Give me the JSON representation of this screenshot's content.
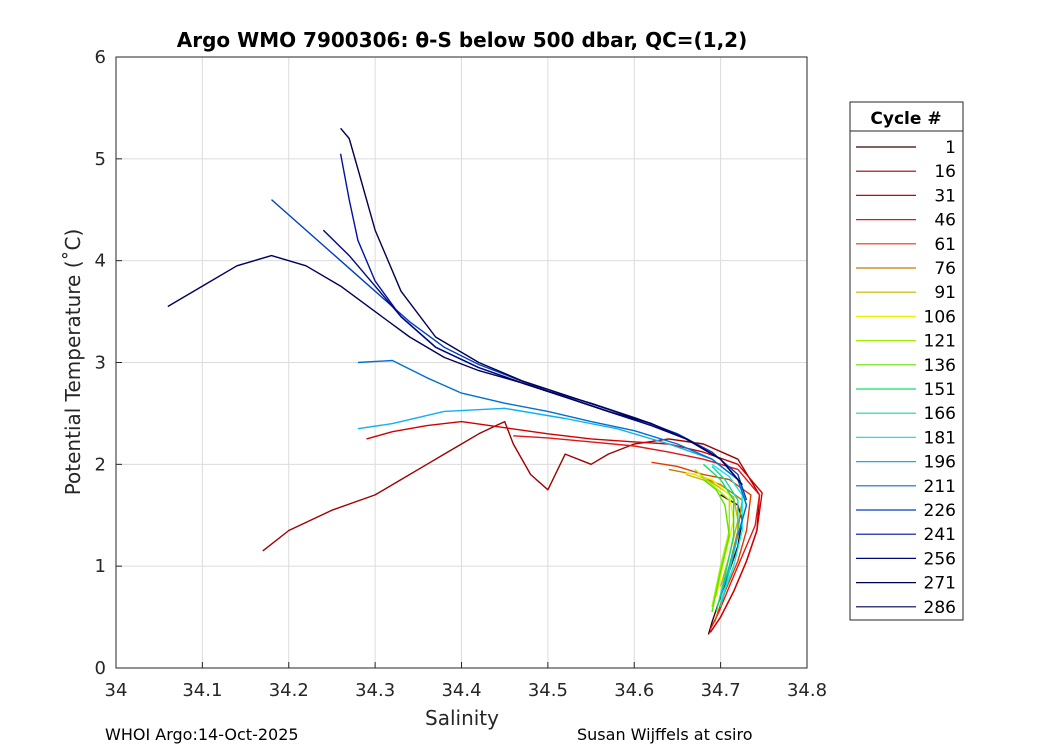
{
  "chart_data": {
    "type": "line",
    "title": "Argo WMO 7900306: θ-S below 500 dbar,  QC=(1,2)",
    "xlabel": "Salinity",
    "ylabel": "Potential Temperature (˚C)",
    "xlim": [
      34,
      34.8
    ],
    "ylim": [
      0,
      6
    ],
    "xticks": [
      34,
      34.1,
      34.2,
      34.3,
      34.4,
      34.5,
      34.6,
      34.7,
      34.8
    ],
    "yticks": [
      0,
      1,
      2,
      3,
      4,
      5,
      6
    ],
    "grid": true,
    "legend": {
      "title": "Cycle #",
      "position": "outside-right",
      "entries": [
        {
          "label": "1",
          "color": "#3b0000"
        },
        {
          "label": "16",
          "color": "#a00000"
        },
        {
          "label": "31",
          "color": "#d40000"
        },
        {
          "label": "46",
          "color": "#e31616"
        },
        {
          "label": "61",
          "color": "#e33a00"
        },
        {
          "label": "76",
          "color": "#c87a00"
        },
        {
          "label": "91",
          "color": "#c8b400"
        },
        {
          "label": "106",
          "color": "#f0f000"
        },
        {
          "label": "121",
          "color": "#a0f000"
        },
        {
          "label": "136",
          "color": "#60e000"
        },
        {
          "label": "151",
          "color": "#10e060"
        },
        {
          "label": "166",
          "color": "#10d8a8"
        },
        {
          "label": "181",
          "color": "#10e8e8"
        },
        {
          "label": "196",
          "color": "#10b0f0"
        },
        {
          "label": "211",
          "color": "#0070d0"
        },
        {
          "label": "226",
          "color": "#0040c0"
        },
        {
          "label": "241",
          "color": "#0010a8"
        },
        {
          "label": "256",
          "color": "#000880"
        },
        {
          "label": "271",
          "color": "#000050"
        },
        {
          "label": "286",
          "color": "#00005c"
        }
      ]
    },
    "series": [
      {
        "name": "1",
        "color": "#3b0000",
        "x": [
          34.686,
          34.69,
          34.7,
          34.71,
          34.72,
          34.725,
          34.72,
          34.7
        ],
        "y": [
          0.33,
          0.45,
          0.7,
          0.95,
          1.2,
          1.45,
          1.6,
          1.7
        ]
      },
      {
        "name": "16",
        "color": "#a00000",
        "x": [
          34.17,
          34.2,
          34.25,
          34.3,
          34.33,
          34.36,
          34.38,
          34.4,
          34.42,
          34.44,
          34.45,
          34.46,
          34.48,
          34.5,
          34.52,
          34.55,
          34.57,
          34.6,
          34.64,
          34.68,
          34.72,
          34.745,
          34.742,
          34.73,
          34.715,
          34.7,
          34.688
        ],
        "y": [
          1.15,
          1.35,
          1.55,
          1.7,
          1.85,
          2.0,
          2.1,
          2.2,
          2.3,
          2.38,
          2.42,
          2.2,
          1.9,
          1.75,
          2.1,
          2.0,
          2.1,
          2.2,
          2.25,
          2.2,
          2.05,
          1.7,
          1.35,
          1.05,
          0.75,
          0.5,
          0.35
        ]
      },
      {
        "name": "31",
        "color": "#d40000",
        "x": [
          34.29,
          34.32,
          34.36,
          34.4,
          34.45,
          34.5,
          34.55,
          34.6,
          34.64,
          34.68,
          34.72,
          34.748,
          34.742,
          34.73,
          34.715,
          34.7,
          34.688
        ],
        "y": [
          2.25,
          2.32,
          2.38,
          2.42,
          2.36,
          2.3,
          2.25,
          2.22,
          2.2,
          2.12,
          2.0,
          1.72,
          1.35,
          1.05,
          0.75,
          0.5,
          0.35
        ]
      },
      {
        "name": "46",
        "color": "#e31616",
        "x": [
          34.46,
          34.5,
          34.55,
          34.6,
          34.64,
          34.68,
          34.72,
          34.745,
          34.74,
          34.725,
          34.71,
          34.698,
          34.688
        ],
        "y": [
          2.28,
          2.26,
          2.22,
          2.18,
          2.12,
          2.05,
          1.95,
          1.7,
          1.4,
          1.1,
          0.8,
          0.55,
          0.38
        ]
      },
      {
        "name": "61",
        "color": "#e33a00",
        "x": [
          34.62,
          34.65,
          34.68,
          34.71,
          34.735,
          34.73,
          34.72,
          34.705,
          34.693
        ],
        "y": [
          2.02,
          1.98,
          1.9,
          1.85,
          1.7,
          1.35,
          1.05,
          0.75,
          0.45
        ]
      },
      {
        "name": "76",
        "color": "#c87a00",
        "x": [
          34.64,
          34.67,
          34.7,
          34.725,
          34.72,
          34.71,
          34.7
        ],
        "y": [
          1.95,
          1.9,
          1.8,
          1.65,
          1.35,
          1.0,
          0.7
        ]
      },
      {
        "name": "91",
        "color": "#c8b400",
        "x": [
          34.66,
          34.69,
          34.715,
          34.72,
          34.71,
          34.7
        ],
        "y": [
          1.9,
          1.82,
          1.68,
          1.45,
          1.1,
          0.8
        ]
      },
      {
        "name": "106",
        "color": "#f0f000",
        "x": [
          34.66,
          34.69,
          34.71,
          34.715,
          34.705,
          34.695
        ],
        "y": [
          1.92,
          1.85,
          1.7,
          1.45,
          1.1,
          0.7
        ]
      },
      {
        "name": "121",
        "color": "#a0f000",
        "x": [
          34.67,
          34.69,
          34.71,
          34.71,
          34.7,
          34.69
        ],
        "y": [
          1.95,
          1.8,
          1.65,
          1.35,
          1.0,
          0.6
        ]
      },
      {
        "name": "136",
        "color": "#60e000",
        "x": [
          34.68,
          34.695,
          34.705,
          34.71,
          34.7,
          34.69
        ],
        "y": [
          1.85,
          1.75,
          1.6,
          1.3,
          0.95,
          0.55
        ]
      },
      {
        "name": "151",
        "color": "#10e060",
        "x": [
          34.68,
          34.7,
          34.715,
          34.715,
          34.705,
          34.695
        ],
        "y": [
          2.0,
          1.85,
          1.65,
          1.3,
          0.9,
          0.55
        ]
      },
      {
        "name": "166",
        "color": "#10d8a8",
        "x": [
          34.69,
          34.705,
          34.72,
          34.72,
          34.71,
          34.7
        ],
        "y": [
          1.98,
          1.85,
          1.65,
          1.3,
          0.95,
          0.6
        ]
      },
      {
        "name": "181",
        "color": "#10e8e8",
        "x": [
          34.69,
          34.71,
          34.725,
          34.725,
          34.715,
          34.7
        ],
        "y": [
          2.0,
          1.88,
          1.7,
          1.35,
          1.0,
          0.65
        ]
      },
      {
        "name": "196",
        "color": "#10b0f0",
        "x": [
          34.28,
          34.32,
          34.38,
          34.45,
          34.52,
          34.58,
          34.64,
          34.69,
          34.72,
          34.73,
          34.72,
          34.71,
          34.7
        ],
        "y": [
          2.35,
          2.4,
          2.52,
          2.55,
          2.45,
          2.35,
          2.2,
          2.05,
          1.85,
          1.6,
          1.3,
          1.0,
          0.7
        ]
      },
      {
        "name": "211",
        "color": "#0070d0",
        "x": [
          34.28,
          34.32,
          34.36,
          34.4,
          34.45,
          34.5,
          34.55,
          34.6,
          34.65,
          34.69,
          34.72,
          34.73,
          34.72
        ],
        "y": [
          3.0,
          3.02,
          2.85,
          2.7,
          2.6,
          2.52,
          2.42,
          2.33,
          2.2,
          2.05,
          1.85,
          1.6,
          1.3
        ]
      },
      {
        "name": "226",
        "color": "#0040c0",
        "x": [
          34.18,
          34.22,
          34.26,
          34.3,
          34.34,
          34.38,
          34.42,
          34.46,
          34.5,
          34.55,
          34.6,
          34.65,
          34.69,
          34.72,
          34.73
        ],
        "y": [
          4.6,
          4.3,
          4.0,
          3.7,
          3.4,
          3.15,
          2.98,
          2.85,
          2.72,
          2.6,
          2.46,
          2.3,
          2.12,
          1.9,
          1.65
        ]
      },
      {
        "name": "241",
        "color": "#0010a8",
        "x": [
          34.26,
          34.27,
          34.28,
          34.3,
          34.33,
          34.37,
          34.42,
          34.47,
          34.52,
          34.57,
          34.62,
          34.66,
          34.7,
          34.725
        ],
        "y": [
          5.05,
          4.6,
          4.2,
          3.8,
          3.45,
          3.15,
          2.95,
          2.8,
          2.66,
          2.52,
          2.38,
          2.25,
          2.05,
          1.8
        ]
      },
      {
        "name": "256",
        "color": "#000880",
        "x": [
          34.24,
          34.27,
          34.3,
          34.33,
          34.37,
          34.42,
          34.47,
          34.52,
          34.57,
          34.62,
          34.66,
          34.7,
          34.725
        ],
        "y": [
          4.3,
          4.05,
          3.75,
          3.45,
          3.15,
          2.95,
          2.8,
          2.66,
          2.52,
          2.38,
          2.25,
          2.05,
          1.8
        ]
      },
      {
        "name": "271",
        "color": "#000050",
        "x": [
          34.26,
          34.27,
          34.28,
          34.3,
          34.33,
          34.37,
          34.42,
          34.47,
          34.52,
          34.57,
          34.62,
          34.66,
          34.7,
          34.725
        ],
        "y": [
          5.3,
          5.2,
          4.9,
          4.3,
          3.7,
          3.25,
          3.0,
          2.82,
          2.68,
          2.54,
          2.4,
          2.25,
          2.05,
          1.8
        ]
      },
      {
        "name": "286",
        "color": "#00005c",
        "x": [
          34.06,
          34.1,
          34.14,
          34.18,
          34.22,
          34.26,
          34.3,
          34.34,
          34.38,
          34.42,
          34.47,
          34.52,
          34.57,
          34.62,
          34.66,
          34.7,
          34.72
        ],
        "y": [
          3.55,
          3.75,
          3.95,
          4.05,
          3.95,
          3.75,
          3.5,
          3.25,
          3.05,
          2.92,
          2.8,
          2.66,
          2.52,
          2.4,
          2.25,
          2.05,
          1.85
        ]
      }
    ]
  },
  "footer": {
    "left": "WHOI Argo:14-Oct-2025",
    "right": "Susan Wijffels at csiro"
  }
}
